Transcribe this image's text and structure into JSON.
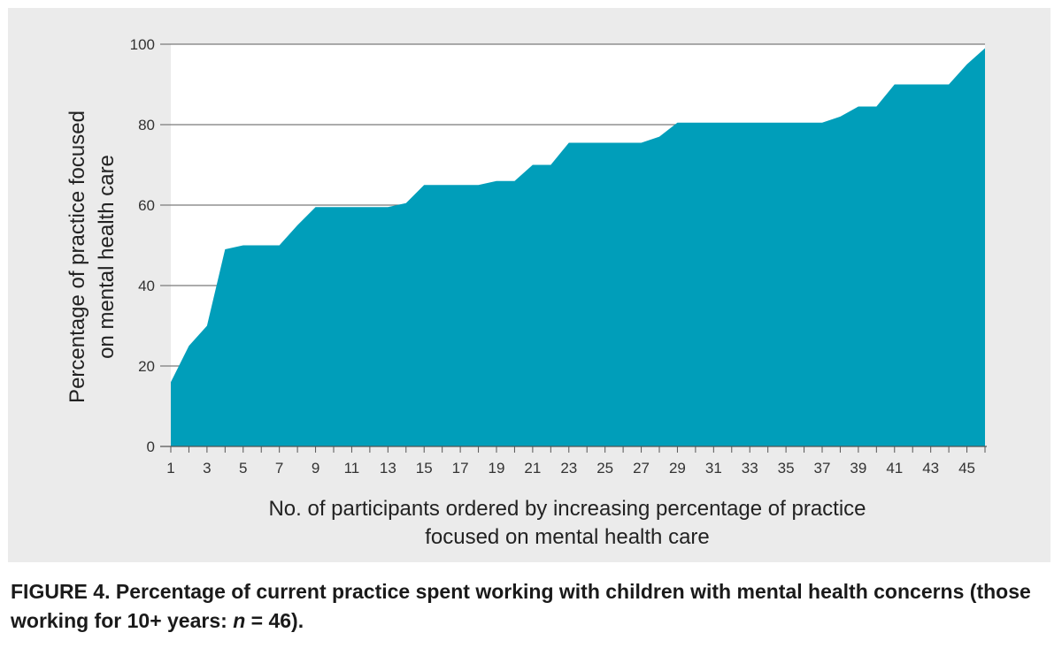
{
  "chart_data": {
    "type": "area",
    "ylabel_lines": [
      "Percentage of practice focused",
      "on mental health care"
    ],
    "xlabel_lines": [
      "No. of participants ordered by increasing percentage of practice",
      "focused on mental health care"
    ],
    "ylim": [
      0,
      100
    ],
    "yticks": [
      0,
      20,
      40,
      60,
      80,
      100
    ],
    "xlim": [
      1,
      46
    ],
    "xticks": [
      1,
      3,
      5,
      7,
      9,
      11,
      13,
      15,
      17,
      19,
      21,
      23,
      25,
      27,
      29,
      31,
      33,
      35,
      37,
      39,
      41,
      43,
      45
    ],
    "grid": true,
    "colors": {
      "fill": "#009eba",
      "grid": "#7a7a7a",
      "panel": "#ebebeb",
      "plot_bg": "#ffffff"
    },
    "series": [
      {
        "x": [
          1,
          2,
          3,
          4,
          5,
          6,
          7,
          8,
          9,
          10,
          11,
          12,
          13,
          14,
          15,
          16,
          17,
          18,
          19,
          20,
          21,
          22,
          23,
          24,
          25,
          26,
          27,
          28,
          29,
          30,
          31,
          32,
          33,
          34,
          35,
          36,
          37,
          38,
          39,
          40,
          41,
          42,
          43,
          44,
          45,
          46
        ],
        "values": [
          16,
          25,
          30,
          49,
          50,
          50,
          50,
          55,
          59.5,
          59.5,
          59.5,
          59.5,
          59.5,
          60.5,
          65,
          65,
          65,
          65,
          66,
          66,
          70,
          70,
          75.5,
          75.5,
          75.5,
          75.5,
          75.5,
          77,
          80.5,
          80.5,
          80.5,
          80.5,
          80.5,
          80.5,
          80.5,
          80.5,
          80.5,
          82,
          84.5,
          84.5,
          90,
          90,
          90,
          90,
          95,
          99
        ]
      }
    ]
  },
  "caption": {
    "label": "FIGURE 4.",
    "text": " Percentage of current practice spent working with children with mental health concerns (those working for 10+ years: ",
    "n_var": "n",
    "n_value": " = 46)."
  }
}
